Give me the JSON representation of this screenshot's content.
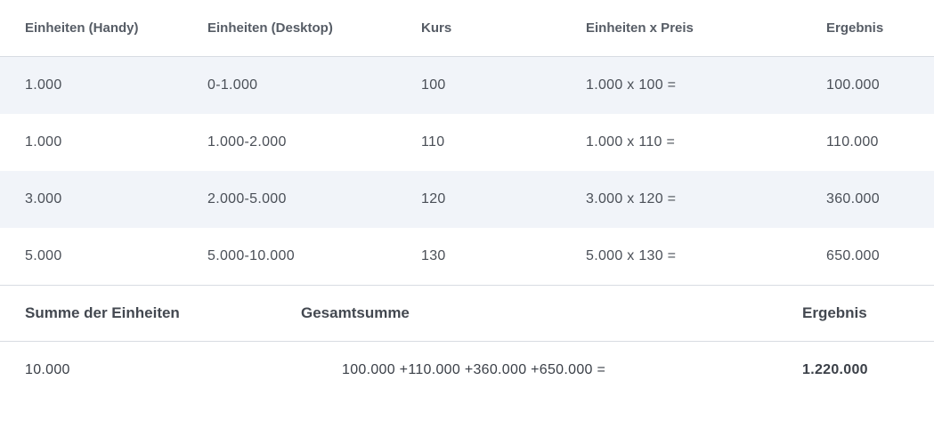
{
  "colors": {
    "background": "#ffffff",
    "stripe": "#f1f4f9",
    "border": "#d8dce2",
    "header_text": "#565c65",
    "body_text": "#4a4f57",
    "summary_header_text": "#434850"
  },
  "table": {
    "headers": {
      "col1": "Einheiten (Handy)",
      "col2": "Einheiten (Desktop)",
      "col3": "Kurs",
      "col4": "Einheiten x Preis",
      "col5": "Ergebnis"
    },
    "rows": [
      {
        "col1": "1.000",
        "col2": "0-1.000",
        "col3": "100",
        "col4": "1.000 x 100 =",
        "col5": "100.000"
      },
      {
        "col1": "1.000",
        "col2": "1.000-2.000",
        "col3": "110",
        "col4": "1.000 x 110 =",
        "col5": "110.000"
      },
      {
        "col1": "3.000",
        "col2": "2.000-5.000",
        "col3": "120",
        "col4": "3.000 x 120 =",
        "col5": "360.000"
      },
      {
        "col1": "5.000",
        "col2": "5.000-10.000",
        "col3": "130",
        "col4": "5.000 x 130 =",
        "col5": "650.000"
      }
    ]
  },
  "summary": {
    "headers": {
      "col1": "Summe der Einheiten",
      "col2": "Gesamtsumme",
      "col3": "Ergebnis"
    },
    "row": {
      "units_total": "10.000",
      "sum_expression": "100.000 +110.000 +360.000 +650.000 =",
      "final_result": "1.220.000"
    }
  }
}
